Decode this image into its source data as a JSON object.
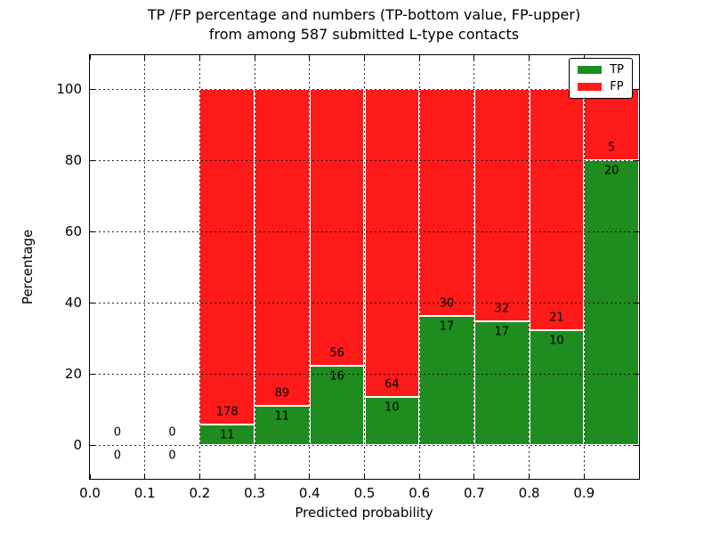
{
  "figure": {
    "title_line1": "TP /FP percentage and numbers (TP-bottom value, FP-upper)",
    "title_line2": "from among 587 submitted L-type contacts",
    "xlabel": "Predicted probability",
    "ylabel": "Percentage"
  },
  "colors": {
    "tp": "#1e8c1e",
    "fp": "#ff1a1a",
    "grid": "#000000",
    "spine": "#000000",
    "background": "#ffffff"
  },
  "chart_data": {
    "type": "bar",
    "stacked": true,
    "normalized_to_percent": 100,
    "title": "TP /FP percentage and numbers (TP-bottom value, FP-upper) from among 587 submitted L-type contacts",
    "xlabel": "Predicted probability",
    "ylabel": "Percentage",
    "total_contacts": 587,
    "xlim": [
      0,
      1
    ],
    "ylim": [
      -9.5,
      109.5
    ],
    "grid": "dotted",
    "x_ticks": [
      "0.0",
      "0.1",
      "0.2",
      "0.3",
      "0.4",
      "0.5",
      "0.6",
      "0.7",
      "0.8",
      "0.9"
    ],
    "y_ticks": [
      0,
      20,
      40,
      60,
      80,
      100
    ],
    "legend": {
      "position": "upper right",
      "entries": [
        {
          "label": "TP",
          "color_key": "tp"
        },
        {
          "label": "FP",
          "color_key": "fp"
        }
      ]
    },
    "bins": [
      {
        "x0": 0.0,
        "x1": 0.1,
        "tp": 0,
        "fp": 0
      },
      {
        "x0": 0.1,
        "x1": 0.2,
        "tp": 0,
        "fp": 0
      },
      {
        "x0": 0.2,
        "x1": 0.3,
        "tp": 11,
        "fp": 178
      },
      {
        "x0": 0.3,
        "x1": 0.4,
        "tp": 11,
        "fp": 89
      },
      {
        "x0": 0.4,
        "x1": 0.5,
        "tp": 16,
        "fp": 56
      },
      {
        "x0": 0.5,
        "x1": 0.6,
        "tp": 10,
        "fp": 64
      },
      {
        "x0": 0.6,
        "x1": 0.7,
        "tp": 17,
        "fp": 30
      },
      {
        "x0": 0.7,
        "x1": 0.8,
        "tp": 17,
        "fp": 32
      },
      {
        "x0": 0.8,
        "x1": 0.9,
        "tp": 10,
        "fp": 21
      },
      {
        "x0": 0.9,
        "x1": 1.0,
        "tp": 20,
        "fp": 5
      }
    ]
  }
}
